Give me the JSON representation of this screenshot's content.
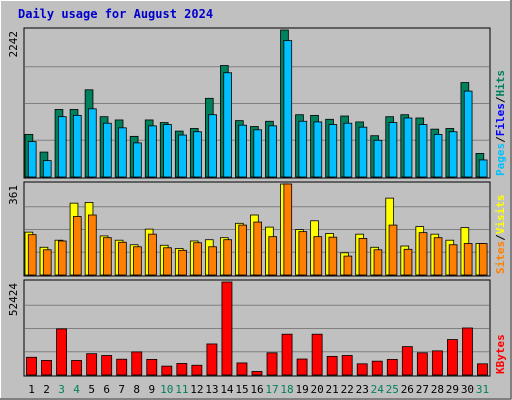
{
  "chart_data": {
    "type": "bar",
    "title": "Daily usage for August 2024",
    "categories": [
      "1",
      "2",
      "3",
      "4",
      "5",
      "6",
      "7",
      "8",
      "9",
      "10",
      "11",
      "12",
      "13",
      "14",
      "15",
      "16",
      "17",
      "18",
      "19",
      "20",
      "21",
      "22",
      "23",
      "24",
      "25",
      "26",
      "27",
      "28",
      "29",
      "30",
      "31"
    ],
    "weekend_days": [
      "3",
      "4",
      "10",
      "11",
      "17",
      "18",
      "24",
      "25",
      "31"
    ],
    "panels": [
      {
        "id": "hits",
        "ymax_label": "2242",
        "ylim": [
          0,
          2242
        ],
        "legend": [
          {
            "text": "Hits",
            "color": "#00805c"
          },
          {
            "text": "Files",
            "color": "#0000ff"
          },
          {
            "text": "Pages",
            "color": "#00c0ff"
          }
        ],
        "series": [
          {
            "name": "Hits",
            "color": "#00805c",
            "values": [
              650,
              380,
              1030,
              1030,
              1330,
              920,
              870,
              620,
              870,
              830,
              700,
              740,
              1200,
              1700,
              860,
              770,
              850,
              2242,
              950,
              940,
              880,
              930,
              840,
              630,
              920,
              950,
              900,
              730,
              740,
              1440,
              360
            ]
          },
          {
            "name": "Files",
            "color": "#0000ff",
            "values": [
              540,
              250,
              920,
              940,
              1040,
              820,
              750,
              520,
              780,
              800,
              640,
              690,
              950,
              1590,
              790,
              720,
              780,
              2080,
              850,
              840,
              800,
              820,
              760,
              560,
              830,
              900,
              800,
              650,
              690,
              1310,
              260
            ]
          },
          {
            "name": "Pages",
            "color": "#00c0ff",
            "values": [
              540,
              250,
              920,
              940,
              1040,
              820,
              750,
              520,
              780,
              800,
              640,
              690,
              950,
              1590,
              790,
              720,
              780,
              2080,
              850,
              840,
              800,
              820,
              760,
              560,
              830,
              900,
              800,
              650,
              690,
              1310,
              260
            ]
          }
        ]
      },
      {
        "id": "visits",
        "ymax_label": "361",
        "ylim": [
          0,
          361
        ],
        "legend": [
          {
            "text": "Visits",
            "color": "#ffff00"
          },
          {
            "text": "Sites",
            "color": "#ff8000"
          }
        ],
        "series": [
          {
            "name": "Visits",
            "color": "#ffff00",
            "values": [
              170,
              110,
              138,
              285,
              288,
              155,
              138,
              120,
              182,
              118,
              105,
              135,
              140,
              148,
              205,
              238,
              190,
              361,
              180,
              215,
              165,
              88,
              162,
              110,
              305,
              115,
              192,
              162,
              138,
              188,
              125
            ]
          },
          {
            "name": "Sites",
            "color": "#ff8000",
            "values": [
              160,
              100,
              135,
              232,
              238,
              148,
              130,
              112,
              162,
              108,
              98,
              128,
              112,
              140,
              198,
              210,
              152,
              361,
              172,
              152,
              150,
              75,
              145,
              100,
              198,
              102,
              168,
              148,
              120,
              125,
              125
            ]
          }
        ]
      },
      {
        "id": "kbytes",
        "ymax_label": "52424",
        "ylim": [
          0,
          52424
        ],
        "legend": [
          {
            "text": "KBytes",
            "color": "#ff0000"
          }
        ],
        "series": [
          {
            "name": "KBytes",
            "color": "#ff0000",
            "values": [
              10000,
              8200,
              26000,
              8200,
              12000,
              11000,
              8900,
              13000,
              8800,
              5000,
              6500,
              5500,
              17500,
              52424,
              6800,
              2000,
              12500,
              23000,
              9000,
              23000,
              10500,
              11000,
              6300,
              7800,
              8800,
              16000,
              12500,
              13600,
              20000,
              26500,
              6300
            ]
          }
        ]
      }
    ]
  }
}
